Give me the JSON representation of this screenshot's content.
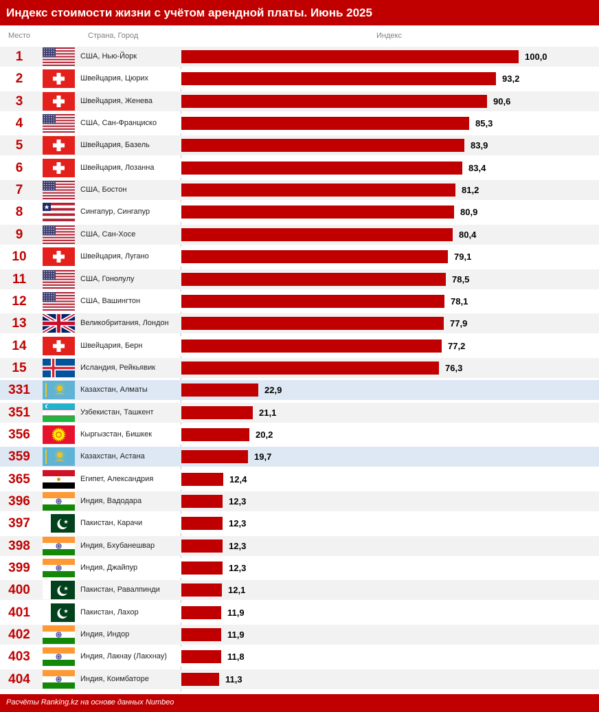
{
  "header": {
    "title": "Индекс стоимости жизни с учётом арендной платы. Июнь 2025",
    "col_rank": "Место",
    "col_city": "Страна, Город",
    "col_index": "Индекс"
  },
  "footer": {
    "source": "Расчёты Ranking.kz на основе данных Numbeo"
  },
  "colors": {
    "accent": "#c00000",
    "highlight_row": "#dde8f4",
    "zebra_row": "#f2f2f2"
  },
  "chart_data": {
    "type": "bar",
    "orientation": "horizontal",
    "title": "Индекс стоимости жизни с учётом арендной платы. Июнь 2025",
    "xlabel": "Индекс",
    "xlim": [
      0,
      100
    ],
    "grid": false,
    "rows": [
      {
        "rank": "1",
        "city": "США, Нью-Йорк",
        "flag": "usa-flag-icon",
        "value": 100.0,
        "label": "100,0",
        "highlight": false
      },
      {
        "rank": "2",
        "city": "Швейцария, Цюрих",
        "flag": "switzerland-flag-icon",
        "value": 93.2,
        "label": "93,2",
        "highlight": false
      },
      {
        "rank": "3",
        "city": "Швейцария, Женева",
        "flag": "switzerland-flag-icon",
        "value": 90.6,
        "label": "90,6",
        "highlight": false
      },
      {
        "rank": "4",
        "city": "США, Сан-Франциско",
        "flag": "usa-flag-icon",
        "value": 85.3,
        "label": "85,3",
        "highlight": false
      },
      {
        "rank": "5",
        "city": "Швейцария, Базель",
        "flag": "switzerland-flag-icon",
        "value": 83.9,
        "label": "83,9",
        "highlight": false
      },
      {
        "rank": "6",
        "city": "Швейцария, Лозанна",
        "flag": "switzerland-flag-icon",
        "value": 83.4,
        "label": "83,4",
        "highlight": false
      },
      {
        "rank": "7",
        "city": "США, Бостон",
        "flag": "usa-flag-icon",
        "value": 81.2,
        "label": "81,2",
        "highlight": false
      },
      {
        "rank": "8",
        "city": "Сингапур, Сингапур",
        "flag": "singapore-flag-icon",
        "value": 80.9,
        "label": "80,9",
        "highlight": false
      },
      {
        "rank": "9",
        "city": "США, Сан-Хосе",
        "flag": "usa-flag-icon",
        "value": 80.4,
        "label": "80,4",
        "highlight": false
      },
      {
        "rank": "10",
        "city": "Швейцария, Лугано",
        "flag": "switzerland-flag-icon",
        "value": 79.1,
        "label": "79,1",
        "highlight": false
      },
      {
        "rank": "11",
        "city": "США, Гонолулу",
        "flag": "usa-flag-icon",
        "value": 78.5,
        "label": "78,5",
        "highlight": false
      },
      {
        "rank": "12",
        "city": "США, Вашингтон",
        "flag": "usa-flag-icon",
        "value": 78.1,
        "label": "78,1",
        "highlight": false
      },
      {
        "rank": "13",
        "city": "Великобритания, Лондон",
        "flag": "uk-flag-icon",
        "value": 77.9,
        "label": "77,9",
        "highlight": false
      },
      {
        "rank": "14",
        "city": "Швейцария, Берн",
        "flag": "switzerland-flag-icon",
        "value": 77.2,
        "label": "77,2",
        "highlight": false
      },
      {
        "rank": "15",
        "city": "Исландия, Рейкьявик",
        "flag": "iceland-flag-icon",
        "value": 76.3,
        "label": "76,3",
        "highlight": false
      },
      {
        "rank": "331",
        "city": "Казахстан, Алматы",
        "flag": "kazakhstan-flag-icon",
        "value": 22.9,
        "label": "22,9",
        "highlight": true
      },
      {
        "rank": "351",
        "city": "Узбекистан, Ташкент",
        "flag": "uzbekistan-flag-icon",
        "value": 21.1,
        "label": "21,1",
        "highlight": false
      },
      {
        "rank": "356",
        "city": "Кыргызстан, Бишкек",
        "flag": "kyrgyzstan-flag-icon",
        "value": 20.2,
        "label": "20,2",
        "highlight": false
      },
      {
        "rank": "359",
        "city": "Казахстан, Астана",
        "flag": "kazakhstan-flag-icon",
        "value": 19.7,
        "label": "19,7",
        "highlight": true
      },
      {
        "rank": "365",
        "city": "Египет, Александрия",
        "flag": "egypt-flag-icon",
        "value": 12.4,
        "label": "12,4",
        "highlight": false
      },
      {
        "rank": "396",
        "city": "Индия, Вадодара",
        "flag": "india-flag-icon",
        "value": 12.3,
        "label": "12,3",
        "highlight": false
      },
      {
        "rank": "397",
        "city": "Пакистан, Карачи",
        "flag": "pakistan-flag-icon",
        "value": 12.3,
        "label": "12,3",
        "highlight": false
      },
      {
        "rank": "398",
        "city": "Индия, Бхубанешвар",
        "flag": "india-flag-icon",
        "value": 12.3,
        "label": "12,3",
        "highlight": false
      },
      {
        "rank": "399",
        "city": "Индия, Джайпур",
        "flag": "india-flag-icon",
        "value": 12.3,
        "label": "12,3",
        "highlight": false
      },
      {
        "rank": "400",
        "city": "Пакистан, Равалпинди",
        "flag": "pakistan-flag-icon",
        "value": 12.1,
        "label": "12,1",
        "highlight": false
      },
      {
        "rank": "401",
        "city": "Пакистан, Лахор",
        "flag": "pakistan-flag-icon",
        "value": 11.9,
        "label": "11,9",
        "highlight": false
      },
      {
        "rank": "402",
        "city": "Индия, Индор",
        "flag": "india-flag-icon",
        "value": 11.9,
        "label": "11,9",
        "highlight": false
      },
      {
        "rank": "403",
        "city": "Индия, Лакнау (Лакхнау)",
        "flag": "india-flag-icon",
        "value": 11.8,
        "label": "11,8",
        "highlight": false
      },
      {
        "rank": "404",
        "city": "Индия, Коимбаторе",
        "flag": "india-flag-icon",
        "value": 11.3,
        "label": "11,3",
        "highlight": false
      }
    ]
  }
}
